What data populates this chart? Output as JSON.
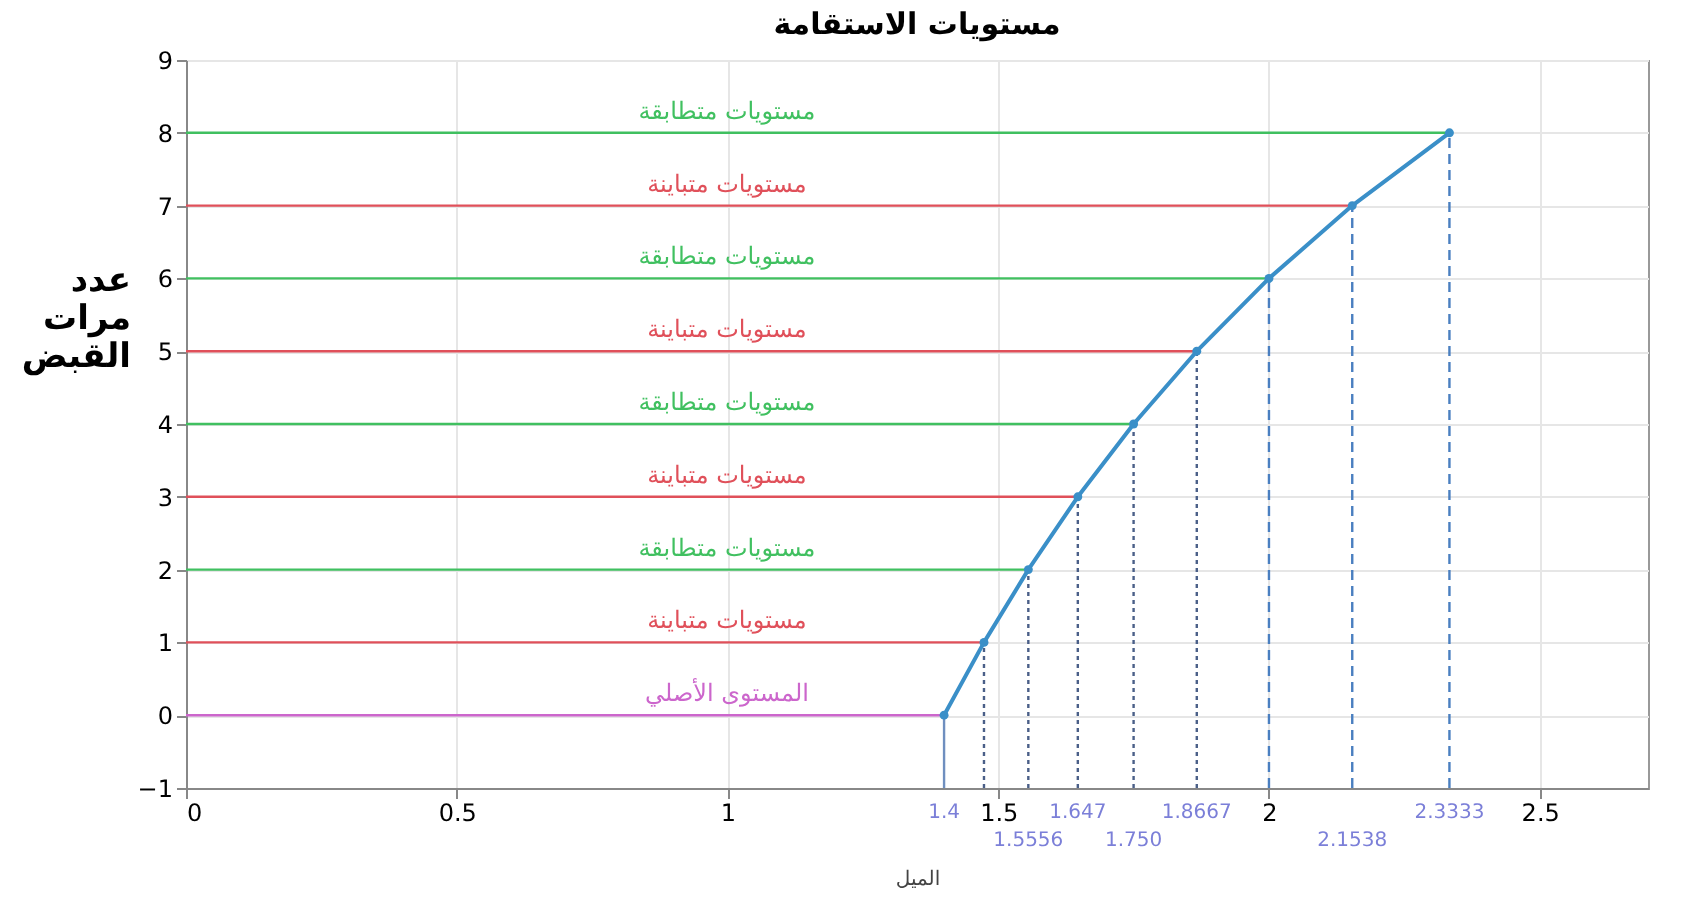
{
  "chart_data": {
    "type": "line",
    "title": "مستويات الاستقامة",
    "xlabel": "الميل",
    "ylabel": "عدد مرات القبض",
    "xlim": [
      0,
      2.7
    ],
    "ylim": [
      -1,
      9
    ],
    "xticks": [
      {
        "value": 0,
        "label": "0"
      },
      0.5,
      {
        "value": 1,
        "label": "1"
      },
      1.5,
      {
        "value": 2,
        "label": "2"
      },
      2.5
    ],
    "yticks": [
      -1,
      0,
      1,
      2,
      3,
      4,
      5,
      6,
      7,
      8,
      9
    ],
    "grid": true,
    "series": [
      {
        "name": "المستوى الأصلي",
        "color": "#cc66cc",
        "x": [
          0,
          1.4
        ],
        "values": [
          0,
          0
        ],
        "line_style": "solid",
        "marker": "none"
      },
      {
        "name": "مستويات متباينة",
        "color": "#e0505a",
        "x": [
          0,
          1.4737
        ],
        "values": [
          1,
          1
        ],
        "line_style": "solid",
        "marker": "none"
      },
      {
        "name": "مستويات متطابقة",
        "color": "#40c060",
        "x": [
          0,
          1.5556
        ],
        "values": [
          2,
          2
        ],
        "line_style": "solid",
        "marker": "none"
      },
      {
        "name": "مستويات متباينة",
        "color": "#e0505a",
        "x": [
          0,
          1.647
        ],
        "values": [
          3,
          3
        ],
        "line_style": "solid",
        "marker": "none"
      },
      {
        "name": "مستويات متطابقة",
        "color": "#40c060",
        "x": [
          0,
          1.75
        ],
        "values": [
          4,
          4
        ],
        "line_style": "solid",
        "marker": "none"
      },
      {
        "name": "مستويات متباينة",
        "color": "#e0505a",
        "x": [
          0,
          1.8667
        ],
        "values": [
          5,
          5
        ],
        "line_style": "solid",
        "marker": "none"
      },
      {
        "name": "مستويات متطابقة",
        "color": "#40c060",
        "x": [
          0,
          2.0
        ],
        "values": [
          6,
          6
        ],
        "line_style": "solid",
        "marker": "none"
      },
      {
        "name": "مستويات متباينة",
        "color": "#e0505a",
        "x": [
          0,
          2.1538
        ],
        "values": [
          7,
          7
        ],
        "line_style": "solid",
        "marker": "none"
      },
      {
        "name": "مستويات متطابقة",
        "color": "#40c060",
        "x": [
          0,
          2.3333
        ],
        "values": [
          8,
          8
        ],
        "line_style": "solid",
        "marker": "none"
      },
      {
        "color": "#6f8fbf",
        "x": [
          1.4,
          1.4
        ],
        "values": [
          -1,
          0
        ],
        "line_style": "solid",
        "marker": "none"
      },
      {
        "color": "#4a5f88",
        "x": [
          1.4737,
          1.4737
        ],
        "values": [
          -1,
          1
        ],
        "line_style": "dotted",
        "marker": "none"
      },
      {
        "color": "#4a5f88",
        "x": [
          1.5556,
          1.5556
        ],
        "values": [
          -1,
          2
        ],
        "line_style": "dotted",
        "marker": "none"
      },
      {
        "color": "#4a5f88",
        "x": [
          1.647,
          1.647
        ],
        "values": [
          -1,
          3
        ],
        "line_style": "dotted",
        "marker": "none"
      },
      {
        "color": "#4a5f88",
        "x": [
          1.75,
          1.75
        ],
        "values": [
          -1,
          4
        ],
        "line_style": "dotted",
        "marker": "none"
      },
      {
        "color": "#4a5f88",
        "x": [
          1.8667,
          1.8667
        ],
        "values": [
          -1,
          5
        ],
        "line_style": "dotted",
        "marker": "none"
      },
      {
        "color": "#4a7fc0",
        "x": [
          2.0,
          2.0
        ],
        "values": [
          -1,
          6
        ],
        "line_style": "dashed"
      },
      {
        "color": "#4a7fc0",
        "x": [
          2.1538,
          2.1538
        ],
        "values": [
          -1,
          7
        ],
        "line_style": "dashed"
      },
      {
        "color": "#4a7fc0",
        "x": [
          2.3333,
          2.3333
        ],
        "values": [
          -1,
          8
        ],
        "line_style": "dashed"
      },
      {
        "color": "#3a8fc8",
        "x": [
          1.4,
          1.4737,
          1.5556,
          1.647,
          1.75,
          1.8667,
          2.0,
          2.1538,
          2.3333
        ],
        "values": [
          0,
          1,
          2,
          3,
          4,
          5,
          6,
          7,
          8
        ],
        "line_style": "solid",
        "marker": "circle"
      }
    ],
    "annotations": [
      {
        "text": "1.4",
        "x": 1.4,
        "y": -1
      },
      {
        "text": "1.5556",
        "x": 1.5556,
        "y": -1
      },
      {
        "text": "1.647",
        "x": 1.647,
        "y": -1
      },
      {
        "text": "1.750",
        "x": 1.75,
        "y": -1
      },
      {
        "text": "1.8667",
        "x": 1.8667,
        "y": -1
      },
      {
        "text": "2.1538",
        "x": 2.1538,
        "y": -1
      },
      {
        "text": "2.3333",
        "x": 2.3333,
        "y": -1
      }
    ]
  }
}
